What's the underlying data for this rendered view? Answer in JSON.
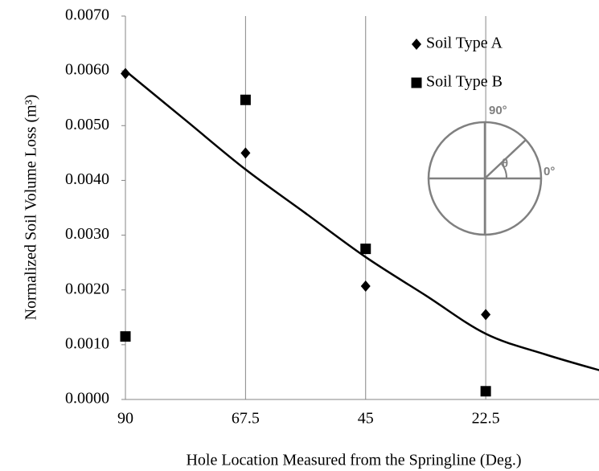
{
  "chart_data": {
    "type": "scatter",
    "x_label": "Hole Location Measured from the Springline (Deg.)",
    "y_label": "Normalized Soil Volume Loss (m³)",
    "xlim": [
      90,
      0
    ],
    "xticks": [
      90,
      67.5,
      45,
      22.5
    ],
    "ylim": [
      0,
      0.007
    ],
    "yticks": [
      {
        "value": 0,
        "label": "0.0000"
      },
      {
        "value": 0.001,
        "label": "0.0010"
      },
      {
        "value": 0.002,
        "label": "0.0020"
      },
      {
        "value": 0.003,
        "label": "0.0030"
      },
      {
        "value": 0.004,
        "label": "0.0040"
      },
      {
        "value": 0.005,
        "label": "0.0050"
      },
      {
        "value": 0.006,
        "label": "0.0060"
      },
      {
        "value": 0.007,
        "label": "0.0070"
      }
    ],
    "grid": true,
    "series": [
      {
        "name": "Soil Type A",
        "marker": "diamond",
        "color": "#000000",
        "x": [
          90,
          67.5,
          45,
          22.5
        ],
        "values": [
          0.00595,
          0.0045,
          0.00207,
          0.00155
        ]
      },
      {
        "name": "Soil Type B",
        "marker": "square",
        "color": "#000000",
        "x": [
          90,
          67.5,
          45,
          22.5
        ],
        "values": [
          0.00115,
          0.00547,
          0.00275,
          0.00015
        ]
      }
    ],
    "trendline": {
      "color": "#000000",
      "x": [
        90,
        78.75,
        67.5,
        56.25,
        45,
        33.75,
        22.5,
        11.25,
        0
      ],
      "values": [
        0.006,
        0.0051,
        0.0042,
        0.0034,
        0.0026,
        0.0019,
        0.0012,
        0.00082,
        0.0005
      ]
    },
    "inset": {
      "labels": [
        "90°",
        "θ",
        "0°"
      ]
    }
  }
}
